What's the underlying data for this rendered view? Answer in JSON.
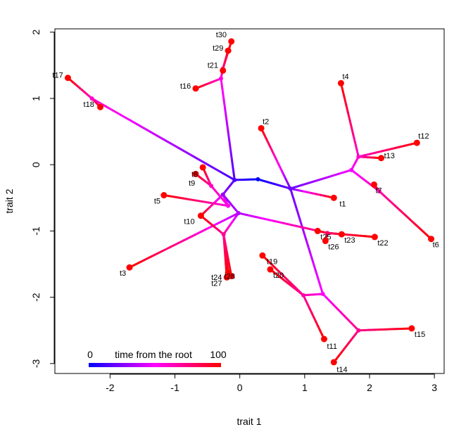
{
  "chart_data": {
    "type": "scatter",
    "subtype": "phylomorphospace",
    "xlabel": "trait 1",
    "ylabel": "trait 2",
    "xlim": [
      -2.85,
      3.15
    ],
    "ylim": [
      -3.15,
      2.05
    ],
    "xticks": [
      -2,
      -1,
      0,
      1,
      2,
      3
    ],
    "xtick_labels": [
      "-2",
      "-1",
      "0",
      "1",
      "2",
      "3"
    ],
    "yticks": [
      -3,
      -2,
      -1,
      0,
      1,
      2
    ],
    "ytick_labels": [
      "-3",
      "-2",
      "-1",
      "0",
      "1",
      "2"
    ],
    "grid": false,
    "legend": {
      "position": "bottom-left",
      "label": "time from the root",
      "min_label": "0",
      "max_label": "100",
      "gradient": [
        "#0000ff",
        "#ff00ff",
        "#ff0000"
      ]
    },
    "root": [
      0.28,
      -0.22
    ],
    "nodes": [
      {
        "id": "root",
        "x": 0.28,
        "y": -0.22,
        "t": 0
      },
      {
        "id": "n1",
        "x": -0.08,
        "y": -0.23,
        "t": 14
      },
      {
        "id": "n2",
        "x": 0.78,
        "y": -0.36,
        "t": 20
      },
      {
        "id": "n3",
        "x": -0.26,
        "y": -0.45,
        "t": 30
      },
      {
        "id": "n4",
        "x": -0.29,
        "y": 1.3,
        "t": 55
      },
      {
        "id": "n5",
        "x": -2.28,
        "y": 1.0,
        "t": 60
      },
      {
        "id": "n6",
        "x": 1.72,
        "y": -0.08,
        "t": 48
      },
      {
        "id": "n7",
        "x": 1.83,
        "y": 0.12,
        "t": 60
      },
      {
        "id": "n8",
        "x": 2.15,
        "y": -0.4,
        "t": 65
      },
      {
        "id": "n9",
        "x": 1.28,
        "y": -1.95,
        "t": 50
      },
      {
        "id": "n10",
        "x": 0.98,
        "y": -1.97,
        "t": 68
      },
      {
        "id": "n11",
        "x": 1.83,
        "y": -2.5,
        "t": 72
      },
      {
        "id": "n12",
        "x": -0.02,
        "y": -0.73,
        "t": 35
      },
      {
        "id": "n13",
        "x": -0.25,
        "y": -1.05,
        "t": 70
      },
      {
        "id": "n14",
        "x": -0.44,
        "y": -0.32,
        "t": 62
      },
      {
        "id": "n15",
        "x": -0.18,
        "y": -0.62,
        "t": 55
      },
      {
        "id": "n16",
        "x": 1.35,
        "y": -1.03,
        "t": 80
      },
      {
        "id": "n17",
        "x": -0.26,
        "y": 1.45,
        "t": 75
      }
    ],
    "edges": [
      {
        "from": "root",
        "to": "n1"
      },
      {
        "from": "root",
        "to": "n2"
      },
      {
        "from": "n1",
        "to": "n3"
      },
      {
        "from": "n1",
        "to": "n4"
      },
      {
        "from": "n1",
        "to": "n5"
      },
      {
        "from": "n2",
        "to": "n6"
      },
      {
        "from": "n2",
        "to": "n9"
      },
      {
        "from": "n2",
        "to": "t1"
      },
      {
        "from": "n2",
        "to": "t2"
      },
      {
        "from": "n6",
        "to": "n7"
      },
      {
        "from": "n6",
        "to": "n8"
      },
      {
        "from": "n7",
        "to": "t4"
      },
      {
        "from": "n7",
        "to": "t12"
      },
      {
        "from": "n7",
        "to": "t13"
      },
      {
        "from": "n8",
        "to": "t7"
      },
      {
        "from": "n8",
        "to": "t6"
      },
      {
        "from": "n9",
        "to": "n10"
      },
      {
        "from": "n9",
        "to": "n11"
      },
      {
        "from": "n10",
        "to": "t19"
      },
      {
        "from": "n10",
        "to": "t20"
      },
      {
        "from": "n10",
        "to": "t11"
      },
      {
        "from": "n11",
        "to": "t15"
      },
      {
        "from": "n11",
        "to": "t14"
      },
      {
        "from": "n3",
        "to": "n12"
      },
      {
        "from": "n3",
        "to": "n15"
      },
      {
        "from": "n3",
        "to": "t10"
      },
      {
        "from": "n12",
        "to": "n13"
      },
      {
        "from": "n12",
        "to": "n16"
      },
      {
        "from": "n12",
        "to": "t3"
      },
      {
        "from": "n13",
        "to": "t10"
      },
      {
        "from": "n13",
        "to": "t24"
      },
      {
        "from": "n13",
        "to": "t27"
      },
      {
        "from": "n13",
        "to": "t28"
      },
      {
        "from": "n15",
        "to": "n14"
      },
      {
        "from": "n15",
        "to": "t5"
      },
      {
        "from": "n14",
        "to": "t8"
      },
      {
        "from": "n14",
        "to": "t9"
      },
      {
        "from": "n16",
        "to": "t25"
      },
      {
        "from": "n16",
        "to": "t26"
      },
      {
        "from": "n16",
        "to": "t23"
      },
      {
        "from": "n16",
        "to": "t22"
      },
      {
        "from": "n4",
        "to": "t16"
      },
      {
        "from": "n4",
        "to": "n17"
      },
      {
        "from": "n17",
        "to": "t21"
      },
      {
        "from": "n17",
        "to": "t29"
      },
      {
        "from": "n17",
        "to": "t30"
      },
      {
        "from": "n5",
        "to": "t17"
      },
      {
        "from": "n5",
        "to": "t18"
      }
    ],
    "tips": [
      {
        "label": "t1",
        "x": 1.45,
        "y": -0.5,
        "lx": 8,
        "ly": 12
      },
      {
        "label": "t2",
        "x": 0.33,
        "y": 0.55,
        "lx": 2,
        "ly": -6
      },
      {
        "label": "t3",
        "x": -1.7,
        "y": -1.55,
        "lx": -14,
        "ly": 12
      },
      {
        "label": "t4",
        "x": 1.56,
        "y": 1.23,
        "lx": 2,
        "ly": -6
      },
      {
        "label": "t5",
        "x": -1.17,
        "y": -0.46,
        "lx": -14,
        "ly": 12
      },
      {
        "label": "t6",
        "x": 2.95,
        "y": -1.12,
        "lx": 2,
        "ly": 12
      },
      {
        "label": "t7",
        "x": 2.07,
        "y": -0.3,
        "lx": 2,
        "ly": 12
      },
      {
        "label": "t8",
        "x": -0.68,
        "y": -0.14,
        "lx": -6,
        "ly": 4
      },
      {
        "label": "t9",
        "x": -0.57,
        "y": -0.04,
        "lx": -20,
        "ly": 26
      },
      {
        "label": "t10",
        "x": -0.6,
        "y": -0.77,
        "lx": -24,
        "ly": 12
      },
      {
        "label": "t11",
        "x": 1.3,
        "y": -2.63,
        "lx": 4,
        "ly": 14
      },
      {
        "label": "t12",
        "x": 2.73,
        "y": 0.33,
        "lx": 2,
        "ly": -6
      },
      {
        "label": "t13",
        "x": 2.18,
        "y": 0.1,
        "lx": 4,
        "ly": 0
      },
      {
        "label": "t14",
        "x": 1.45,
        "y": -2.98,
        "lx": 4,
        "ly": 14
      },
      {
        "label": "t15",
        "x": 2.65,
        "y": -2.47,
        "lx": 4,
        "ly": 12
      },
      {
        "label": "t16",
        "x": -0.68,
        "y": 1.15,
        "lx": -22,
        "ly": 0
      },
      {
        "label": "t17",
        "x": -2.65,
        "y": 1.31,
        "lx": -22,
        "ly": 0
      },
      {
        "label": "t18",
        "x": -2.15,
        "y": 0.87,
        "lx": -24,
        "ly": 0
      },
      {
        "label": "t19",
        "x": 0.35,
        "y": -1.37,
        "lx": 6,
        "ly": 12
      },
      {
        "label": "t20",
        "x": 0.47,
        "y": -1.58,
        "lx": 4,
        "ly": 12
      },
      {
        "label": "t21",
        "x": -0.26,
        "y": 1.42,
        "lx": -22,
        "ly": -4
      },
      {
        "label": "t22",
        "x": 2.08,
        "y": -1.09,
        "lx": 4,
        "ly": 12
      },
      {
        "label": "t23",
        "x": 1.57,
        "y": -1.05,
        "lx": 4,
        "ly": 12
      },
      {
        "label": "t24",
        "x": -0.18,
        "y": -1.63,
        "lx": -24,
        "ly": 10
      },
      {
        "label": "t25",
        "x": 1.2,
        "y": -1.0,
        "lx": 4,
        "ly": 12
      },
      {
        "label": "t26",
        "x": 1.32,
        "y": -1.15,
        "lx": 4,
        "ly": 12
      },
      {
        "label": "t27",
        "x": -0.2,
        "y": -1.7,
        "lx": -22,
        "ly": 12
      },
      {
        "label": "t28",
        "x": -0.13,
        "y": -1.68,
        "lx": -10,
        "ly": 4
      },
      {
        "label": "t29",
        "x": -0.18,
        "y": 1.72,
        "lx": -22,
        "ly": 0
      },
      {
        "label": "t30",
        "x": -0.13,
        "y": 1.86,
        "lx": -22,
        "ly": -6
      }
    ]
  }
}
